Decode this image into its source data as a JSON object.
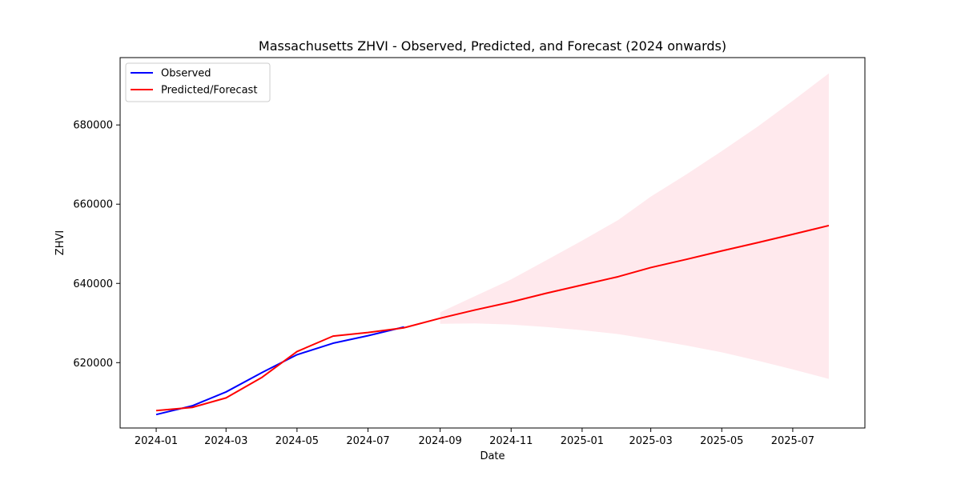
{
  "chart_data": {
    "type": "line",
    "title": "Massachusetts ZHVI - Observed, Predicted, and Forecast (2024 onwards)",
    "xlabel": "Date",
    "ylabel": "ZHVI",
    "xlim": [
      "2023-12-01",
      "2025-09-01"
    ],
    "ylim": [
      603500,
      697000
    ],
    "x_ticks": [
      "2024-01",
      "2024-03",
      "2024-05",
      "2024-07",
      "2024-09",
      "2024-11",
      "2025-01",
      "2025-03",
      "2025-05",
      "2025-07"
    ],
    "y_ticks": [
      620000,
      640000,
      660000,
      680000
    ],
    "legend_position": "upper-left",
    "grid": false,
    "series": [
      {
        "name": "Observed",
        "color": "#0000ff",
        "points": [
          [
            "2024-01-01",
            606900
          ],
          [
            "2024-02-01",
            609100
          ],
          [
            "2024-03-01",
            612600
          ],
          [
            "2024-04-01",
            617500
          ],
          [
            "2024-05-01",
            622000
          ],
          [
            "2024-06-01",
            624900
          ],
          [
            "2024-07-01",
            626800
          ],
          [
            "2024-08-01",
            629000
          ]
        ]
      },
      {
        "name": "Predicted/Forecast",
        "color": "#ff0000",
        "points": [
          [
            "2024-01-01",
            607900
          ],
          [
            "2024-02-01",
            608700
          ],
          [
            "2024-03-01",
            611100
          ],
          [
            "2024-04-01",
            616300
          ],
          [
            "2024-05-01",
            622800
          ],
          [
            "2024-06-01",
            626700
          ],
          [
            "2024-07-01",
            627600
          ],
          [
            "2024-08-01",
            628800
          ],
          [
            "2024-09-01",
            631200
          ],
          [
            "2024-10-01",
            633300
          ],
          [
            "2024-11-01",
            635300
          ],
          [
            "2024-12-01",
            637500
          ],
          [
            "2025-01-01",
            639600
          ],
          [
            "2025-02-01",
            641700
          ],
          [
            "2025-03-01",
            644000
          ],
          [
            "2025-04-01",
            646100
          ],
          [
            "2025-05-01",
            648200
          ],
          [
            "2025-06-01",
            650300
          ],
          [
            "2025-07-01",
            652400
          ],
          [
            "2025-08-01",
            654600
          ]
        ]
      }
    ],
    "confidence_band": {
      "color": "#ffc0cb",
      "opacity": 0.35,
      "points": [
        [
          "2024-09-01",
          629800,
          632700
        ],
        [
          "2024-10-01",
          629900,
          636800
        ],
        [
          "2024-11-01",
          629600,
          641000
        ],
        [
          "2024-12-01",
          629000,
          645800
        ],
        [
          "2025-01-01",
          628200,
          650800
        ],
        [
          "2025-02-01",
          627200,
          656000
        ],
        [
          "2025-03-01",
          625900,
          661900
        ],
        [
          "2025-04-01",
          624300,
          667600
        ],
        [
          "2025-05-01",
          622600,
          673400
        ],
        [
          "2025-06-01",
          620500,
          679600
        ],
        [
          "2025-07-01",
          618300,
          686100
        ],
        [
          "2025-08-01",
          615900,
          693000
        ]
      ]
    }
  }
}
